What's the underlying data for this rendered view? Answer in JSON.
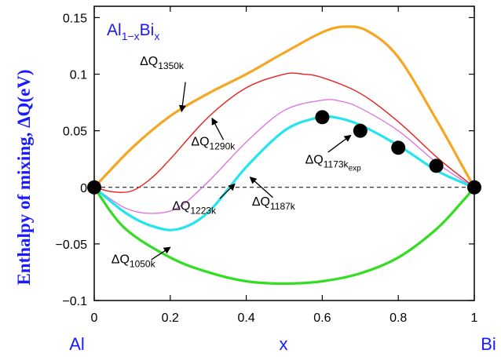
{
  "chart_data": {
    "type": "line",
    "title_main": "Al",
    "title_sub1": "1−x",
    "title_main2": "Bi",
    "title_sub2": "x",
    "ylabel": "Enthalpy of mixing, ΔQ(eV)",
    "xlabel": "x",
    "x_end_left": "Al",
    "x_end_right": "Bi",
    "xlim": [
      0,
      1
    ],
    "ylim": [
      -0.1,
      0.16
    ],
    "xticks": [
      {
        "v": 0,
        "label": "0"
      },
      {
        "v": 0.2,
        "label": "0.2"
      },
      {
        "v": 0.4,
        "label": "0.4"
      },
      {
        "v": 0.6,
        "label": "0.6"
      },
      {
        "v": 0.8,
        "label": "0.8"
      },
      {
        "v": 1,
        "label": "1"
      }
    ],
    "yticks": [
      {
        "v": -0.1,
        "label": "−0.1"
      },
      {
        "v": -0.05,
        "label": "−0.05"
      },
      {
        "v": 0,
        "label": "0"
      },
      {
        "v": 0.05,
        "label": "0.05"
      },
      {
        "v": 0.1,
        "label": "0.1"
      },
      {
        "v": 0.15,
        "label": "0.15"
      }
    ],
    "zero_line": {
      "style": "dashed",
      "color": "#000000"
    },
    "series": [
      {
        "id": "q1350",
        "name": "ΔQ1350k",
        "color": "#f5a623",
        "width": 3.2,
        "x": [
          0,
          0.1,
          0.2,
          0.3,
          0.4,
          0.5,
          0.6,
          0.66,
          0.72,
          0.8,
          0.9,
          0.97,
          1
        ],
        "y": [
          0,
          0.035,
          0.063,
          0.083,
          0.1,
          0.119,
          0.137,
          0.142,
          0.138,
          0.115,
          0.06,
          0.018,
          0
        ]
      },
      {
        "id": "q1290",
        "name": "ΔQ1290k",
        "color": "#e8201e",
        "width": 1.4,
        "x": [
          0,
          0.05,
          0.1,
          0.15,
          0.2,
          0.3,
          0.4,
          0.5,
          0.55,
          0.6,
          0.7,
          0.8,
          0.9,
          0.97,
          1
        ],
        "y": [
          0,
          -0.004,
          -0.003,
          0.008,
          0.025,
          0.062,
          0.088,
          0.1,
          0.1,
          0.097,
          0.083,
          0.058,
          0.027,
          0.008,
          0
        ]
      },
      {
        "id": "q1223",
        "name": "ΔQ1223k",
        "color": "#dd77dd",
        "width": 1.4,
        "x": [
          0,
          0.08,
          0.15,
          0.22,
          0.3,
          0.4,
          0.5,
          0.6,
          0.65,
          0.7,
          0.8,
          0.9,
          0.97,
          1
        ],
        "y": [
          0,
          -0.018,
          -0.023,
          -0.018,
          0.005,
          0.04,
          0.068,
          0.077,
          0.076,
          0.07,
          0.05,
          0.022,
          0.006,
          0
        ]
      },
      {
        "id": "q1187",
        "name": "ΔQ1187k",
        "color": "#22e5ee",
        "width": 3.2,
        "x": [
          0,
          0.08,
          0.15,
          0.22,
          0.3,
          0.4,
          0.5,
          0.58,
          0.63,
          0.7,
          0.8,
          0.9,
          0.97,
          1
        ],
        "y": [
          0,
          -0.022,
          -0.034,
          -0.037,
          -0.022,
          0.018,
          0.05,
          0.061,
          0.062,
          0.055,
          0.037,
          0.015,
          0.004,
          0
        ]
      },
      {
        "id": "q1050",
        "name": "ΔQ1050k",
        "color": "#33dd22",
        "width": 3.2,
        "x": [
          0,
          0.08,
          0.2,
          0.3,
          0.4,
          0.5,
          0.6,
          0.7,
          0.8,
          0.9,
          0.97,
          1
        ],
        "y": [
          0,
          -0.036,
          -0.062,
          -0.075,
          -0.083,
          -0.085,
          -0.083,
          -0.076,
          -0.062,
          -0.037,
          -0.012,
          0
        ]
      }
    ],
    "experimental": {
      "name": "ΔQ1173kexp",
      "x": [
        0,
        0.6,
        0.7,
        0.8,
        0.9,
        1
      ],
      "y": [
        0,
        0.062,
        0.05,
        0.035,
        0.019,
        0
      ]
    },
    "annotations": [
      {
        "id": "ann-1350",
        "main": "ΔQ",
        "sub": "1350k",
        "tx": 0.12,
        "ty": 0.108,
        "ax0": 0.24,
        "ay0": 0.093,
        "ax1": 0.23,
        "ay1": 0.067
      },
      {
        "id": "ann-1290",
        "main": "ΔQ",
        "sub": "1290k",
        "tx": 0.255,
        "ty": 0.037,
        "ax0": 0.34,
        "ay0": 0.042,
        "ax1": 0.31,
        "ay1": 0.061
      },
      {
        "id": "ann-1223",
        "main": "ΔQ",
        "sub": "1223k",
        "tx": 0.205,
        "ty": -0.02,
        "ax0": 0.33,
        "ay0": -0.01,
        "ax1": 0.37,
        "ay1": 0.003
      },
      {
        "id": "ann-1187",
        "main": "ΔQ",
        "sub": "1187k",
        "tx": 0.415,
        "ty": -0.016,
        "ax0": 0.47,
        "ay0": -0.009,
        "ax1": 0.41,
        "ay1": 0.009
      },
      {
        "id": "ann-1173",
        "main": "ΔQ",
        "sub": "1173k",
        "subsub": "exp",
        "tx": 0.555,
        "ty": 0.021,
        "ax0": 0.615,
        "ay0": 0.031,
        "ax1": 0.675,
        "ay1": 0.046
      },
      {
        "id": "ann-1050",
        "main": "ΔQ",
        "sub": "1050k",
        "tx": 0.045,
        "ty": -0.067,
        "ax0": 0.15,
        "ay0": -0.064,
        "ax1": 0.2,
        "ay1": -0.053
      }
    ]
  },
  "colors": {
    "axis": "#000000",
    "label_blue": "#1a1aff"
  }
}
